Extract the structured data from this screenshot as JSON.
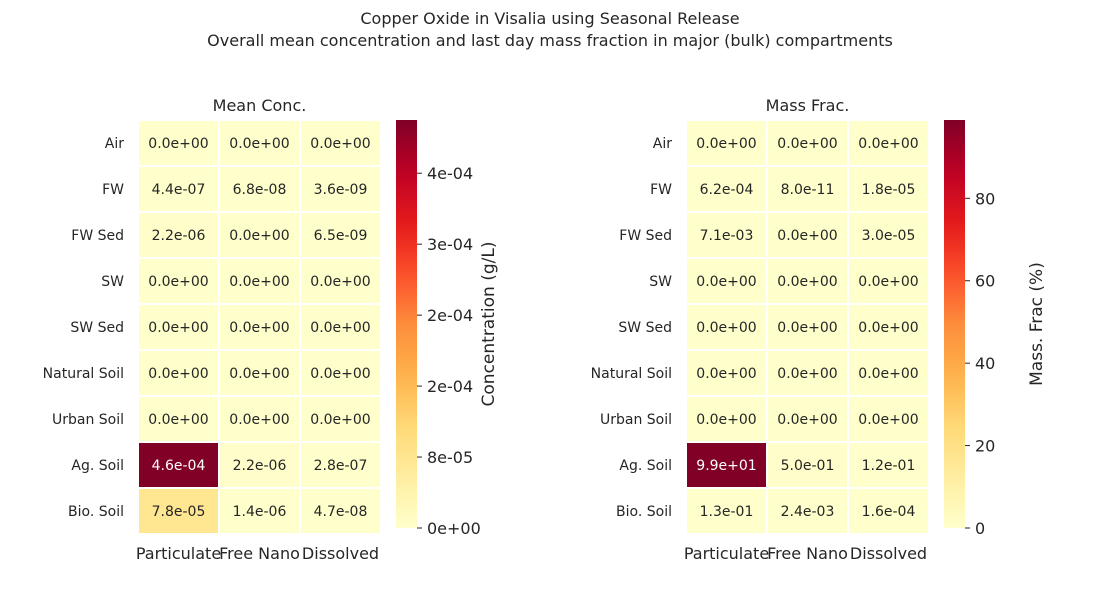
{
  "title": "Copper Oxide in Visalia using Seasonal Release",
  "subtitle": "Overall mean concentration and last day mass fraction in major (bulk) compartments",
  "chart_data": [
    {
      "type": "heatmap",
      "title": "Mean Conc.",
      "rows": [
        "Air",
        "FW",
        "FW Sed",
        "SW",
        "SW Sed",
        "Natural Soil",
        "Urban Soil",
        "Ag. Soil",
        "Bio. Soil"
      ],
      "columns": [
        "Particulate",
        "Free Nano",
        "Dissolved"
      ],
      "values": [
        [
          0,
          0,
          0
        ],
        [
          4.4e-07,
          6.8e-08,
          3.6e-09
        ],
        [
          2.2e-06,
          0,
          6.5e-09
        ],
        [
          0,
          0,
          0
        ],
        [
          0,
          0,
          0
        ],
        [
          0,
          0,
          0
        ],
        [
          0,
          0,
          0
        ],
        [
          0.00046,
          2.2e-06,
          2.8e-07
        ],
        [
          7.8e-05,
          1.4e-06,
          4.7e-08
        ]
      ],
      "labels": [
        [
          "0.0e+00",
          "0.0e+00",
          "0.0e+00"
        ],
        [
          "4.4e-07",
          "6.8e-08",
          "3.6e-09"
        ],
        [
          "2.2e-06",
          "0.0e+00",
          "6.5e-09"
        ],
        [
          "0.0e+00",
          "0.0e+00",
          "0.0e+00"
        ],
        [
          "0.0e+00",
          "0.0e+00",
          "0.0e+00"
        ],
        [
          "0.0e+00",
          "0.0e+00",
          "0.0e+00"
        ],
        [
          "0.0e+00",
          "0.0e+00",
          "0.0e+00"
        ],
        [
          "4.6e-04",
          "2.2e-06",
          "2.8e-07"
        ],
        [
          "7.8e-05",
          "1.4e-06",
          "4.7e-08"
        ]
      ],
      "colorbar": {
        "label": "Concentration (g/L)",
        "vmin": 0,
        "vmax": 0.00046,
        "ticks": [
          0,
          8e-05,
          0.00016,
          0.00024,
          0.00032,
          0.0004
        ],
        "tick_labels": [
          "0e+00",
          "8e-05",
          "2e-04",
          "2e-04",
          "3e-04",
          "4e-04"
        ]
      },
      "colormap": "YlOrRd"
    },
    {
      "type": "heatmap",
      "title": "Mass Frac.",
      "rows": [
        "Air",
        "FW",
        "FW Sed",
        "SW",
        "SW Sed",
        "Natural Soil",
        "Urban Soil",
        "Ag. Soil",
        "Bio. Soil"
      ],
      "columns": [
        "Particulate",
        "Free Nano",
        "Dissolved"
      ],
      "values": [
        [
          0,
          0,
          0
        ],
        [
          0.00062,
          8e-11,
          1.8e-05
        ],
        [
          0.0071,
          0,
          3e-05
        ],
        [
          0,
          0,
          0
        ],
        [
          0,
          0,
          0
        ],
        [
          0,
          0,
          0
        ],
        [
          0,
          0,
          0
        ],
        [
          99,
          0.5,
          0.12
        ],
        [
          0.13,
          0.0024,
          0.00016
        ]
      ],
      "labels": [
        [
          "0.0e+00",
          "0.0e+00",
          "0.0e+00"
        ],
        [
          "6.2e-04",
          "8.0e-11",
          "1.8e-05"
        ],
        [
          "7.1e-03",
          "0.0e+00",
          "3.0e-05"
        ],
        [
          "0.0e+00",
          "0.0e+00",
          "0.0e+00"
        ],
        [
          "0.0e+00",
          "0.0e+00",
          "0.0e+00"
        ],
        [
          "0.0e+00",
          "0.0e+00",
          "0.0e+00"
        ],
        [
          "0.0e+00",
          "0.0e+00",
          "0.0e+00"
        ],
        [
          "9.9e+01",
          "5.0e-01",
          "1.2e-01"
        ],
        [
          "1.3e-01",
          "2.4e-03",
          "1.6e-04"
        ]
      ],
      "colorbar": {
        "label": "Mass. Frac (%)",
        "vmin": 0,
        "vmax": 99,
        "ticks": [
          0,
          20,
          40,
          60,
          80
        ],
        "tick_labels": [
          "0",
          "20",
          "40",
          "60",
          "80"
        ]
      },
      "colormap": "YlOrRd"
    }
  ]
}
